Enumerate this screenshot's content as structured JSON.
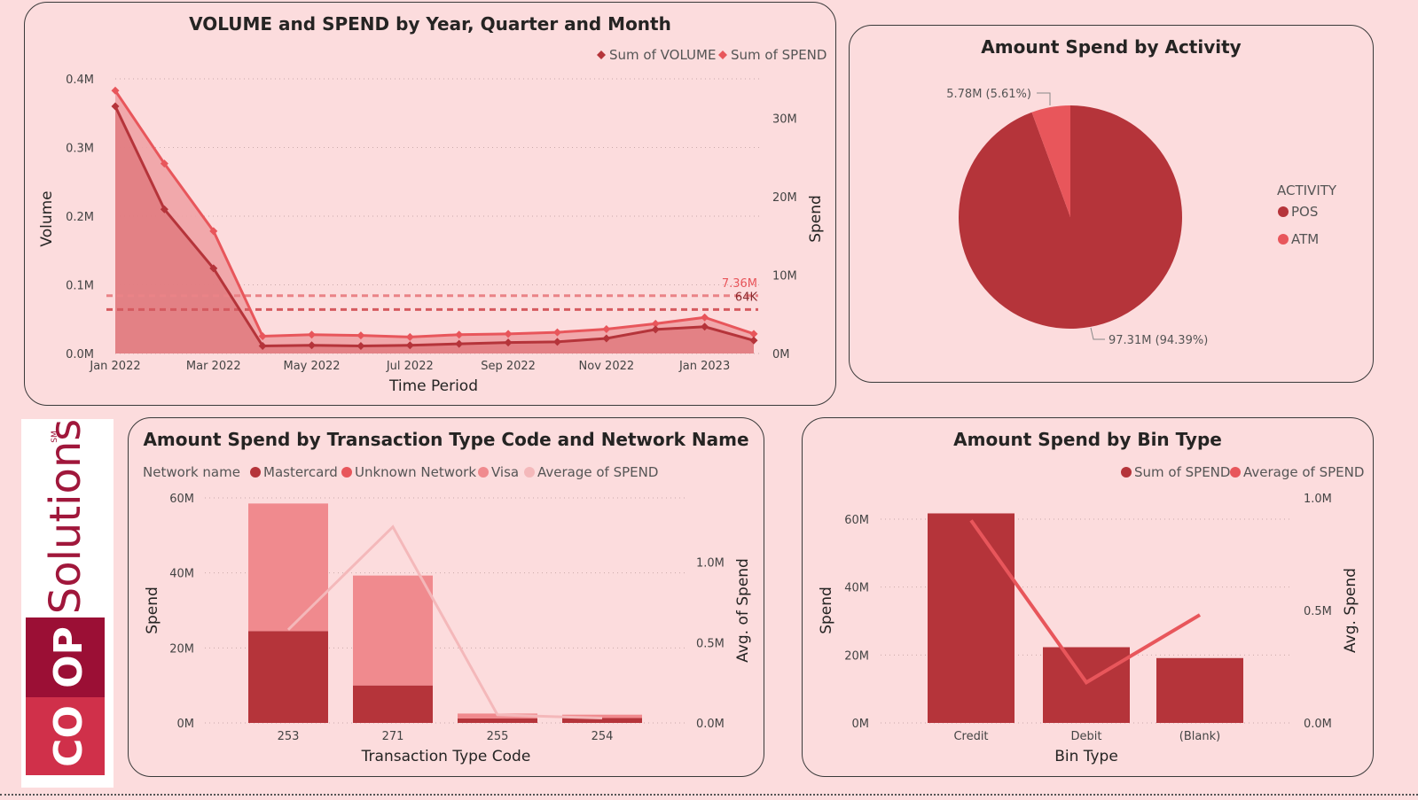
{
  "colors": {
    "background": "#fcdcdd",
    "dark_red": "#b5343a",
    "red": "#e8565b",
    "pink": "#f08a8e",
    "light_pink": "#f4b8ba",
    "logo_top": "#9b0f35",
    "logo_bottom": "#d0304a"
  },
  "logo": {
    "word": "Solutions",
    "sm": "SM",
    "co": "CO",
    "op": "OP"
  },
  "charts": {
    "volume_spend": {
      "title": "VOLUME and SPEND by Year, Quarter and Month",
      "legend": [
        "Sum of VOLUME",
        "Sum of SPEND"
      ],
      "xlabel": "Time Period",
      "ylabel_left": "Volume",
      "ylabel_right": "Spend",
      "ref_spend_label": "7.36M",
      "ref_volume_label": "64K"
    },
    "activity": {
      "title": "Amount Spend by Activity",
      "legend_title": "ACTIVITY",
      "label_atm": "5.78M (5.61%)",
      "label_pos": "97.31M (94.39%)"
    },
    "transaction": {
      "title": "Amount Spend by Transaction Type Code and Network Name",
      "legend_title": "Network name",
      "xlabel": "Transaction Type Code",
      "ylabel_left": "Spend",
      "ylabel_right": "Avg. of Spend"
    },
    "bin": {
      "title": "Amount Spend by Bin Type",
      "xlabel": "Bin Type",
      "ylabel_left": "Spend",
      "ylabel_right": "Avg. Spend"
    }
  },
  "chart_data": [
    {
      "type": "line",
      "title": "VOLUME and SPEND by Year, Quarter and Month",
      "x": [
        "Jan 2022",
        "Feb 2022",
        "Mar 2022",
        "Apr 2022",
        "May 2022",
        "Jun 2022",
        "Jul 2022",
        "Aug 2022",
        "Sep 2022",
        "Oct 2022",
        "Nov 2022",
        "Dec 2022",
        "Jan 2023",
        "Feb 2023"
      ],
      "x_tick_labels": [
        "Jan 2022",
        "Mar 2022",
        "May 2022",
        "Jul 2022",
        "Sep 2022",
        "Nov 2022",
        "Jan 2023"
      ],
      "xlabel": "Time Period",
      "ylabel": "Volume",
      "y2label": "Spend",
      "ylim": [
        0,
        0.4
      ],
      "y_ticks": [
        "0.0M",
        "0.1M",
        "0.2M",
        "0.3M",
        "0.4M"
      ],
      "y2lim": [
        0,
        35
      ],
      "y2_ticks": [
        "0M",
        "10M",
        "20M",
        "30M"
      ],
      "series": [
        {
          "name": "Sum of VOLUME",
          "axis": "left",
          "unit": "M",
          "values": [
            0.36,
            0.21,
            0.124,
            0.011,
            0.012,
            0.011,
            0.012,
            0.014,
            0.016,
            0.017,
            0.022,
            0.035,
            0.039,
            0.019
          ],
          "color": "#b5343a"
        },
        {
          "name": "Sum of SPEND",
          "axis": "right",
          "unit": "M",
          "values": [
            33.5,
            24.2,
            15.6,
            2.2,
            2.4,
            2.3,
            2.1,
            2.4,
            2.5,
            2.7,
            3.1,
            3.8,
            4.6,
            2.5
          ],
          "color": "#e8565b"
        }
      ],
      "reference_lines": [
        {
          "label": "7.36M",
          "axis": "right",
          "value": 7.36,
          "color": "#e8565b"
        },
        {
          "label": "64K",
          "axis": "left",
          "value": 0.064,
          "color": "#b5343a"
        }
      ]
    },
    {
      "type": "pie",
      "title": "Amount Spend by Activity",
      "legend_title": "ACTIVITY",
      "categories": [
        "POS",
        "ATM"
      ],
      "values": [
        97.31,
        5.78
      ],
      "percent": [
        94.39,
        5.61
      ],
      "colors": [
        "#b5343a",
        "#e8565b"
      ]
    },
    {
      "type": "bar",
      "stacked": true,
      "title": "Amount Spend by Transaction Type Code and Network Name",
      "categories": [
        "253",
        "271",
        "255",
        "254"
      ],
      "xlabel": "Transaction Type Code",
      "ylabel": "Spend",
      "y2label": "Avg. of Spend",
      "ylim": [
        0,
        60
      ],
      "y_ticks": [
        "0M",
        "20M",
        "40M",
        "60M"
      ],
      "y2lim": [
        0,
        1.4
      ],
      "y2_ticks": [
        "0.0M",
        "0.5M",
        "1.0M"
      ],
      "series": [
        {
          "name": "Mastercard",
          "values": [
            24.5,
            10.0,
            1.2,
            1.3
          ],
          "color": "#b5343a"
        },
        {
          "name": "Unknown Network",
          "values": [
            0,
            0,
            0,
            0
          ],
          "color": "#e8565b"
        },
        {
          "name": "Visa",
          "values": [
            34.0,
            29.3,
            1.3,
            0.9
          ],
          "color": "#f08a8e"
        },
        {
          "name": "Average of SPEND",
          "type": "line",
          "axis": "right",
          "values": [
            0.58,
            1.22,
            0.05,
            0.03
          ],
          "color": "#f4b8ba"
        }
      ]
    },
    {
      "type": "bar",
      "title": "Amount Spend by Bin Type",
      "categories": [
        "Credit",
        "Debit",
        "(Blank)"
      ],
      "xlabel": "Bin Type",
      "ylabel": "Spend",
      "y2label": "Avg. Spend",
      "ylim": [
        0,
        60
      ],
      "y_ticks": [
        "0M",
        "20M",
        "40M",
        "60M"
      ],
      "y2lim": [
        0,
        1.0
      ],
      "y2_ticks": [
        "0.0M",
        "0.5M",
        "1.0M"
      ],
      "series": [
        {
          "name": "Sum of SPEND",
          "values": [
            61.7,
            22.3,
            19.1
          ],
          "color": "#b5343a"
        },
        {
          "name": "Average of SPEND",
          "type": "line",
          "axis": "right",
          "values": [
            0.9,
            0.18,
            0.48
          ],
          "color": "#e8565b"
        }
      ]
    }
  ]
}
